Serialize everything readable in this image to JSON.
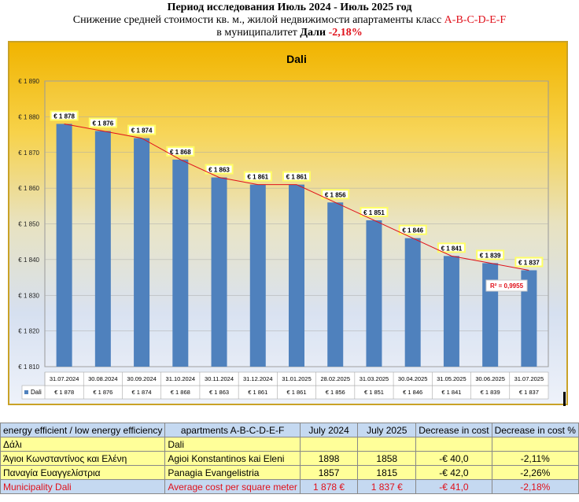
{
  "header": {
    "line1": "Период исследования Июль 2024 - Июль 2025 год",
    "line2_prefix": "Снижение средней стоимости кв. м., жилой недвижимости апартаменты класс ",
    "line2_class": "A-B-C-D-E-F",
    "line3_prefix": "в муниципалитет ",
    "line3_name": "Дали",
    "line3_change": "-2,18%"
  },
  "colors": {
    "bar": "#4f81bd",
    "trend": "#e0101a",
    "label_bg": "#ffff66"
  },
  "chart_data": {
    "type": "bar",
    "title": "Dali",
    "series": [
      {
        "name": "Dali",
        "values": [
          1878,
          1876,
          1874,
          1868,
          1863,
          1861,
          1861,
          1856,
          1851,
          1846,
          1841,
          1839,
          1837
        ]
      }
    ],
    "categories": [
      "31.07.2024",
      "30.08.2024",
      "30.09.2024",
      "31.10.2024",
      "30.11.2024",
      "31.12.2024",
      "31.01.2025",
      "28.02.2025",
      "31.03.2025",
      "30.04.2025",
      "31.05.2025",
      "30.06.2025",
      "31.07.2025"
    ],
    "data_labels": [
      "€ 1 878",
      "€ 1 876",
      "€ 1 874",
      "€ 1 868",
      "€ 1 863",
      "€ 1 861",
      "€ 1 861",
      "€ 1 856",
      "€ 1 851",
      "€ 1 846",
      "€ 1 841",
      "€ 1 839",
      "€ 1 837"
    ],
    "yticks": [
      "€ 1 810",
      "€ 1 820",
      "€ 1 830",
      "€ 1 840",
      "€ 1 850",
      "€ 1 860",
      "€ 1 870",
      "€ 1 880",
      "€ 1 890"
    ],
    "ylim": [
      1810,
      1890
    ],
    "trendline": "polynomial",
    "r2_label": "R² = 0,9955",
    "legend": "data-table",
    "grid": true
  },
  "table": {
    "headers": [
      "energy efficient / low energy efficiency",
      "apartments A-B-C-D-E-F",
      "July 2024",
      "July 2025",
      "Decrease in cost",
      "Decrease in cost  %"
    ],
    "rows": [
      [
        "Δάλι",
        "Dali",
        "",
        "",
        "",
        ""
      ],
      [
        "Άγιοι Κωνσταντίνος και Ελένη",
        "Agioi Konstantinos kai Eleni",
        "1898",
        "1858",
        "-€ 40,0",
        "-2,11%"
      ],
      [
        "Παναγία Ευαγγελίστρια",
        "Panagia Evangelistria",
        "1857",
        "1815",
        "-€ 42,0",
        "-2,26%"
      ]
    ],
    "municipality": [
      "Municipality Dali",
      "Average cost per square meter",
      "1 878 €",
      "1 837 €",
      "-€ 41,0",
      "-2,18%"
    ]
  }
}
